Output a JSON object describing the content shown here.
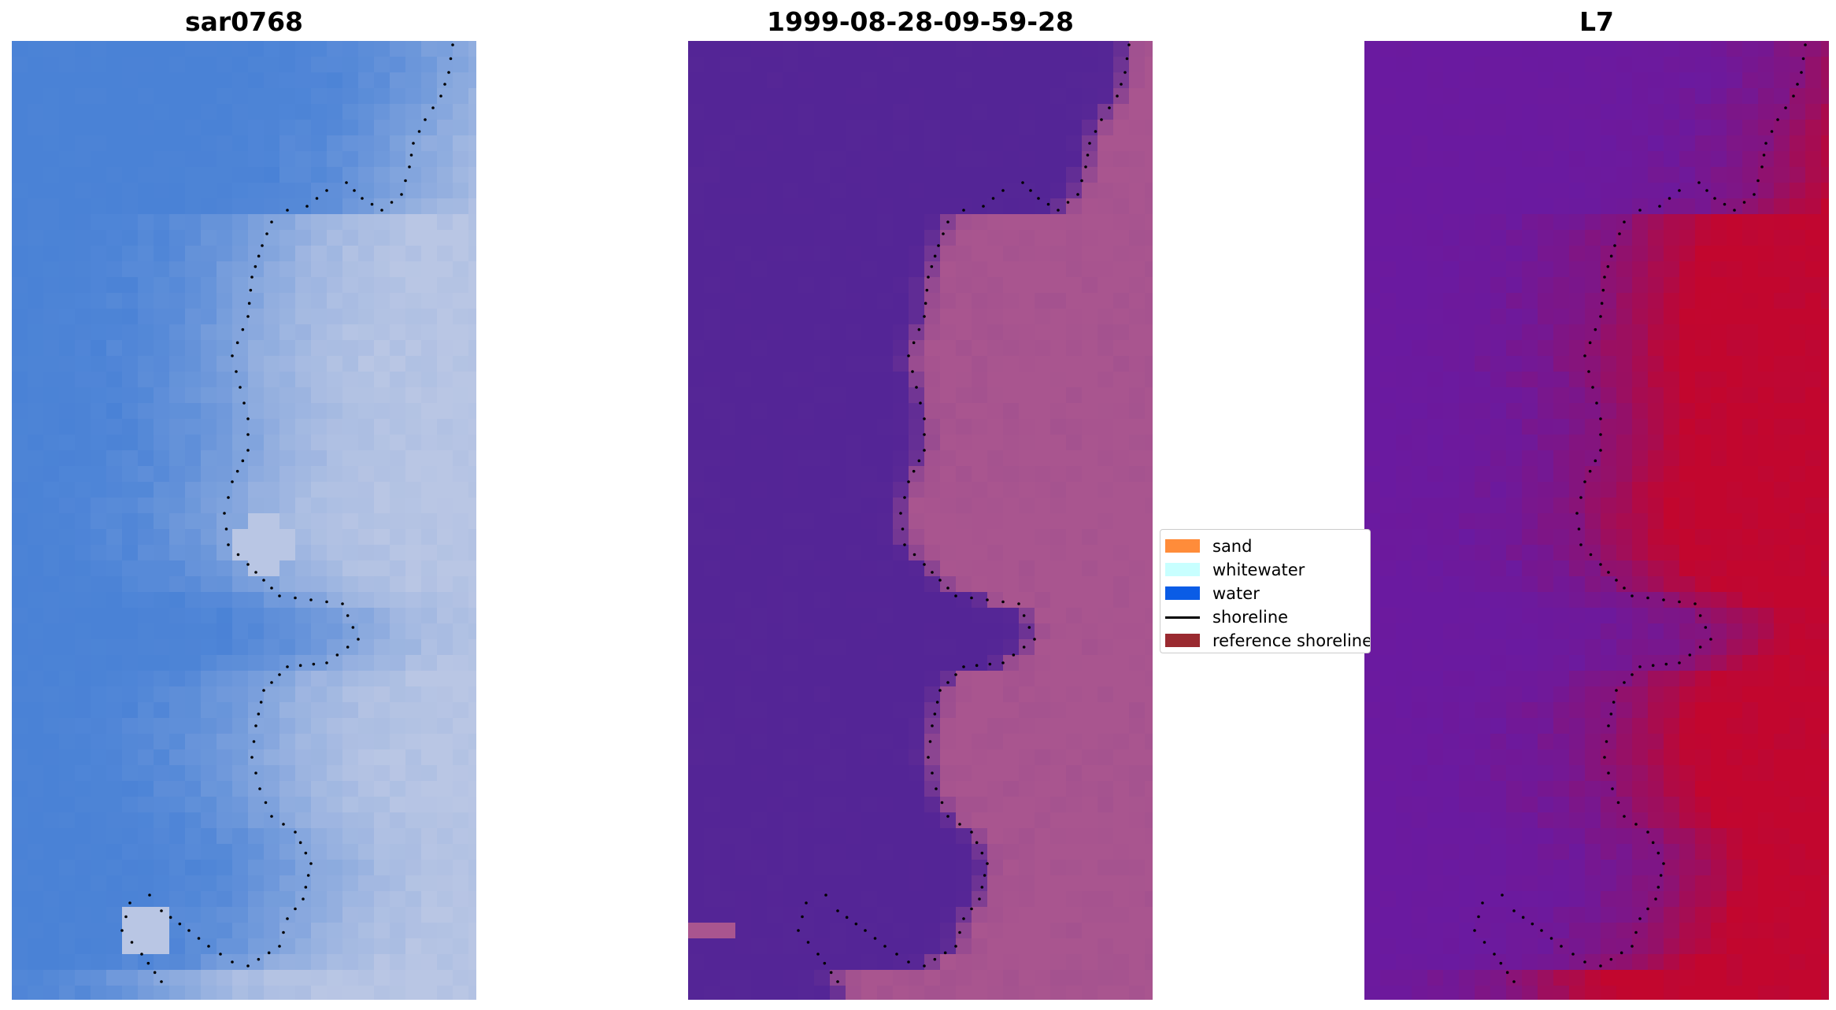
{
  "panels": [
    {
      "title": "sar0768",
      "kind": "rgb"
    },
    {
      "title": "1999-08-28-09-59-28",
      "kind": "classified"
    },
    {
      "title": "L7",
      "kind": "index"
    }
  ],
  "legend": {
    "items": [
      {
        "label": "sand",
        "color": "#ff8c3a",
        "style": "patch"
      },
      {
        "label": "whitewater",
        "color": "#c8ffff",
        "style": "patch"
      },
      {
        "label": "water",
        "color": "#0a5ce6",
        "style": "patch"
      },
      {
        "label": "shoreline",
        "color": "#000000",
        "style": "line"
      },
      {
        "label": "reference shoreline",
        "color": "#9a2a30",
        "style": "patch"
      }
    ]
  },
  "colors": {
    "rgb_water": "#4a82d6",
    "rgb_land": "#b9c6e4",
    "class_water": "#542596",
    "class_land": "#a9558f",
    "index_water": "#6a1aa0",
    "index_land": "#c2062e"
  }
}
